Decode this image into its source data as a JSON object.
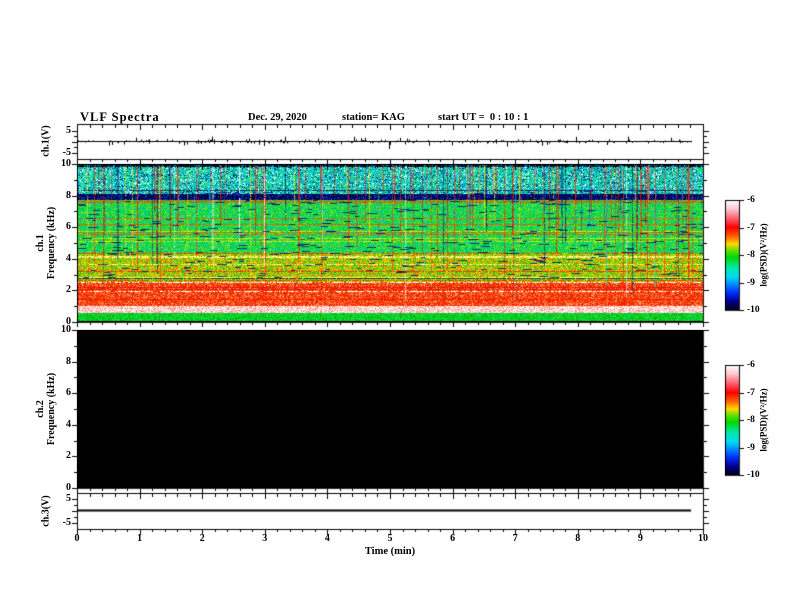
{
  "header": {
    "title": "VLF Spectra",
    "date": "Dec. 29, 2020",
    "station": "station= KAG",
    "start_ut": "start UT =  0 : 10 : 1"
  },
  "xaxis": {
    "label": "Time (min)",
    "major_ticks": [
      0,
      1,
      2,
      3,
      4,
      5,
      6,
      7,
      8,
      9,
      10
    ],
    "minor_step": 0.2,
    "xlim": [
      0,
      10
    ]
  },
  "panels": {
    "ch1_waveform": {
      "ylabel": "ch.1(V)",
      "ytick_labels": [
        "5",
        "-5"
      ],
      "ytick_values": [
        5,
        -5
      ],
      "ylim": [
        -5,
        5
      ]
    },
    "ch1_spectrogram": {
      "ylabel_line1": "ch.1",
      "ylabel_line2": "Frequency (kHz)",
      "ytick_labels": [
        "10",
        "8",
        "6",
        "4",
        "2",
        "0"
      ],
      "ytick_values": [
        10,
        8,
        6,
        4,
        2,
        0
      ],
      "ylim": [
        0,
        10
      ]
    },
    "ch2_spectrogram": {
      "ylabel_line1": "ch.2",
      "ylabel_line2": "Frequency (kHz)",
      "ytick_labels": [
        "10",
        "8",
        "6",
        "4",
        "2",
        "0"
      ],
      "ytick_values": [
        10,
        8,
        6,
        4,
        2,
        0
      ],
      "ylim": [
        0,
        10
      ]
    },
    "ch3_waveform": {
      "ylabel": "ch.3(V)",
      "ytick_labels": [
        "5",
        "-5"
      ],
      "ytick_values": [
        5,
        -5
      ],
      "ylim": [
        -5,
        5
      ]
    }
  },
  "colorbars": [
    {
      "label": "log(PSD)(V²/Hz)",
      "tick_labels": [
        "-6",
        "-7",
        "-8",
        "-9",
        "-10"
      ],
      "tick_values": [
        -6,
        -7,
        -8,
        -9,
        -10
      ],
      "gradient_stops": [
        [
          0,
          "#ffffff"
        ],
        [
          0.08,
          "#ffc8d0"
        ],
        [
          0.18,
          "#ff5060"
        ],
        [
          0.25,
          "#ff0000"
        ],
        [
          0.33,
          "#ff6000"
        ],
        [
          0.4,
          "#ffd800"
        ],
        [
          0.46,
          "#60e000"
        ],
        [
          0.52,
          "#00d800"
        ],
        [
          0.62,
          "#00e8b0"
        ],
        [
          0.7,
          "#00d8f0"
        ],
        [
          0.76,
          "#0090ff"
        ],
        [
          0.84,
          "#0030ff"
        ],
        [
          0.92,
          "#000090"
        ],
        [
          1,
          "#000018"
        ]
      ]
    },
    {
      "label": "log(PSD)(V²/Hz)",
      "tick_labels": [
        "-6",
        "-7",
        "-8",
        "-9",
        "-10"
      ],
      "tick_values": [
        -6,
        -7,
        -8,
        -9,
        -10
      ],
      "gradient_stops": [
        [
          0,
          "#ffffff"
        ],
        [
          0.08,
          "#ffc8d0"
        ],
        [
          0.18,
          "#ff5060"
        ],
        [
          0.25,
          "#ff0000"
        ],
        [
          0.33,
          "#ff6000"
        ],
        [
          0.4,
          "#ffd800"
        ],
        [
          0.46,
          "#60e000"
        ],
        [
          0.52,
          "#00d800"
        ],
        [
          0.62,
          "#00e8b0"
        ],
        [
          0.7,
          "#00d8f0"
        ],
        [
          0.76,
          "#0090ff"
        ],
        [
          0.84,
          "#0030ff"
        ],
        [
          0.92,
          "#000090"
        ],
        [
          1,
          "#000018"
        ]
      ]
    }
  ],
  "chart_data": [
    {
      "type": "line",
      "name": "ch1_waveform",
      "ylabel": "ch.1(V)",
      "xlim": [
        0,
        10
      ],
      "ylim": [
        -5,
        5
      ],
      "baseline": 0,
      "description": "Near-flat trace at 0 V with small impulsive noise spikes (about ±0.5 V) along the whole record and a few larger downward spikes (about -1.5 V), e.g. near t = 5 min; trace ends slightly before t = 10 min"
    },
    {
      "type": "heatmap",
      "name": "ch1_spectrogram",
      "xlabel": "Time (min)",
      "ylabel": "ch.1 Frequency (kHz)",
      "xlim": [
        0,
        10
      ],
      "ylim": [
        0,
        10
      ],
      "zlim": [
        -10,
        -6
      ],
      "z_units": "log(PSD)(V²/Hz)",
      "description": "Broadband VLF spectrogram: black edge at 10 kHz; cyan-green speckle 8.2-9.8 kHz crossed by dense red vertical sferic streaks; dark navy band near 7.8-8.1 kHz (~ -9.5); green mid band 4.4-7.8 kHz (~ -8) with red/yellow/white vertical streaks and navy dashes; yellow-orange zone 2.5-4.4 kHz with thin red horizontal lines; saturated red band 1-2.5 kHz (~ -7) with white horizontal lines; white/pink saturated band near 0.6-1 kHz (~ -6); green band 0.1-0.6 kHz; black at 0 kHz",
      "bands": [
        {
          "f0": 10.0,
          "f1": 9.85,
          "palette": [
            "#000018",
            "#000018",
            "#000018",
            "#002060",
            "#00b8e8"
          ],
          "row_lines": []
        },
        {
          "f0": 9.85,
          "f1": 8.15,
          "palette": [
            "#00e098",
            "#00d470",
            "#10c8e0",
            "#38e080",
            "#00b0ff",
            "#20d8b0",
            "#003090",
            "#e8fff0"
          ],
          "row_lines": [
            {
              "p": 0.05,
              "color": "#003060"
            }
          ]
        },
        {
          "f0": 8.15,
          "f1": 7.75,
          "palette": [
            "#000038",
            "#0000a0",
            "#000050",
            "#0048c0",
            "#000028"
          ],
          "row_lines": []
        },
        {
          "f0": 7.75,
          "f1": 4.4,
          "palette": [
            "#00d840",
            "#00cc2c",
            "#20dc60",
            "#00d088",
            "#48e020",
            "#00c0b0",
            "#90e800"
          ],
          "row_lines": [
            {
              "p": 0.05,
              "color": "#e8e000"
            },
            {
              "p": 0.04,
              "color": "#ff5000"
            },
            {
              "p": 0.04,
              "color": "#001878"
            }
          ]
        },
        {
          "f0": 4.4,
          "f1": 2.55,
          "palette": [
            "#80d800",
            "#b0e000",
            "#e0e000",
            "#50cc10",
            "#ffa800",
            "#ff6000",
            "#00c840"
          ],
          "row_lines": [
            {
              "p": 0.22,
              "color": "#ff3000"
            },
            {
              "p": 0.08,
              "color": "#203828"
            },
            {
              "p": 0.06,
              "color": "#ffff80"
            }
          ]
        },
        {
          "f0": 2.55,
          "f1": 1.05,
          "palette": [
            "#ff2800",
            "#ff4000",
            "#f03000",
            "#ff7030",
            "#ff9860",
            "#d82000"
          ],
          "row_lines": [
            {
              "p": 0.2,
              "color": "#ffffff"
            },
            {
              "p": 0.25,
              "color": "#e81800"
            }
          ]
        },
        {
          "f0": 1.05,
          "f1": 0.6,
          "palette": [
            "#ffffff",
            "#ffd8d8",
            "#ffb0a8",
            "#ff8880",
            "#fff0f0"
          ],
          "row_lines": [
            {
              "p": 0.12,
              "color": "#ff7878"
            }
          ]
        },
        {
          "f0": 0.6,
          "f1": 0.12,
          "palette": [
            "#00d81c",
            "#00c010",
            "#30dc38",
            "#00e060",
            "#08b008"
          ],
          "row_lines": [
            {
              "p": 0.06,
              "color": "#b8ffb8"
            },
            {
              "p": 0.05,
              "color": "#ffffff"
            }
          ]
        },
        {
          "f0": 0.12,
          "f1": 0.0,
          "palette": [
            "#000000",
            "#000000",
            "#041404"
          ],
          "row_lines": []
        }
      ],
      "streaks": {
        "count": 150,
        "f_top": 9.85,
        "colors": [
          [
            "#ff2000",
            50
          ],
          [
            "#cc0000",
            10
          ],
          [
            "#ffdc00",
            12
          ],
          [
            "#ffffff",
            9
          ],
          [
            "#00e0ff",
            9
          ],
          [
            "#001880",
            10
          ]
        ]
      },
      "dashes": {
        "count": 420,
        "color": "#000878",
        "f_min": 2.8,
        "f_max": 8.3,
        "len": [
          3,
          10
        ]
      }
    },
    {
      "type": "heatmap",
      "name": "ch2_spectrogram",
      "xlabel": "Time (min)",
      "ylabel": "ch.2 Frequency (kHz)",
      "xlim": [
        0,
        10
      ],
      "ylim": [
        0,
        10
      ],
      "zlim": [
        -10,
        -6
      ],
      "z_units": "log(PSD)(V²/Hz)",
      "uniform_value": -10,
      "fill_color": "#000000",
      "description": "No signal: uniform black (at/below -10) across all frequencies and times"
    },
    {
      "type": "line",
      "name": "ch3_waveform",
      "ylabel": "ch.3(V)",
      "xlim": [
        0,
        10
      ],
      "ylim": [
        -5,
        5
      ],
      "baseline": 0,
      "description": "Perfectly flat line at 0 V, ending slightly before t = 10 min"
    }
  ]
}
